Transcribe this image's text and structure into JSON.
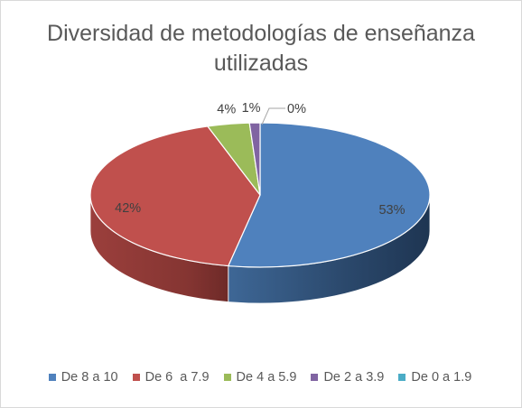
{
  "chart_data": {
    "type": "pie",
    "title_lines": [
      "Diversidad de metodologías de enseñanza",
      "utilizadas"
    ],
    "slices": [
      {
        "label": "De 8 a 10",
        "value": 53,
        "display": "53%",
        "color": "#4f81bd"
      },
      {
        "label": "De 6  a 7.9",
        "value": 42,
        "display": "42%",
        "color": "#c0504d"
      },
      {
        "label": "De 4 a 5.9",
        "value": 4,
        "display": "4%",
        "color": "#9bbb59"
      },
      {
        "label": "De 2 a 3.9",
        "value": 1,
        "display": "1%",
        "color": "#8064a2"
      },
      {
        "label": "De 0 a 1.9",
        "value": 0,
        "display": "0%",
        "color": "#4bacc6"
      }
    ],
    "legend_position": "bottom",
    "style": "3d"
  }
}
